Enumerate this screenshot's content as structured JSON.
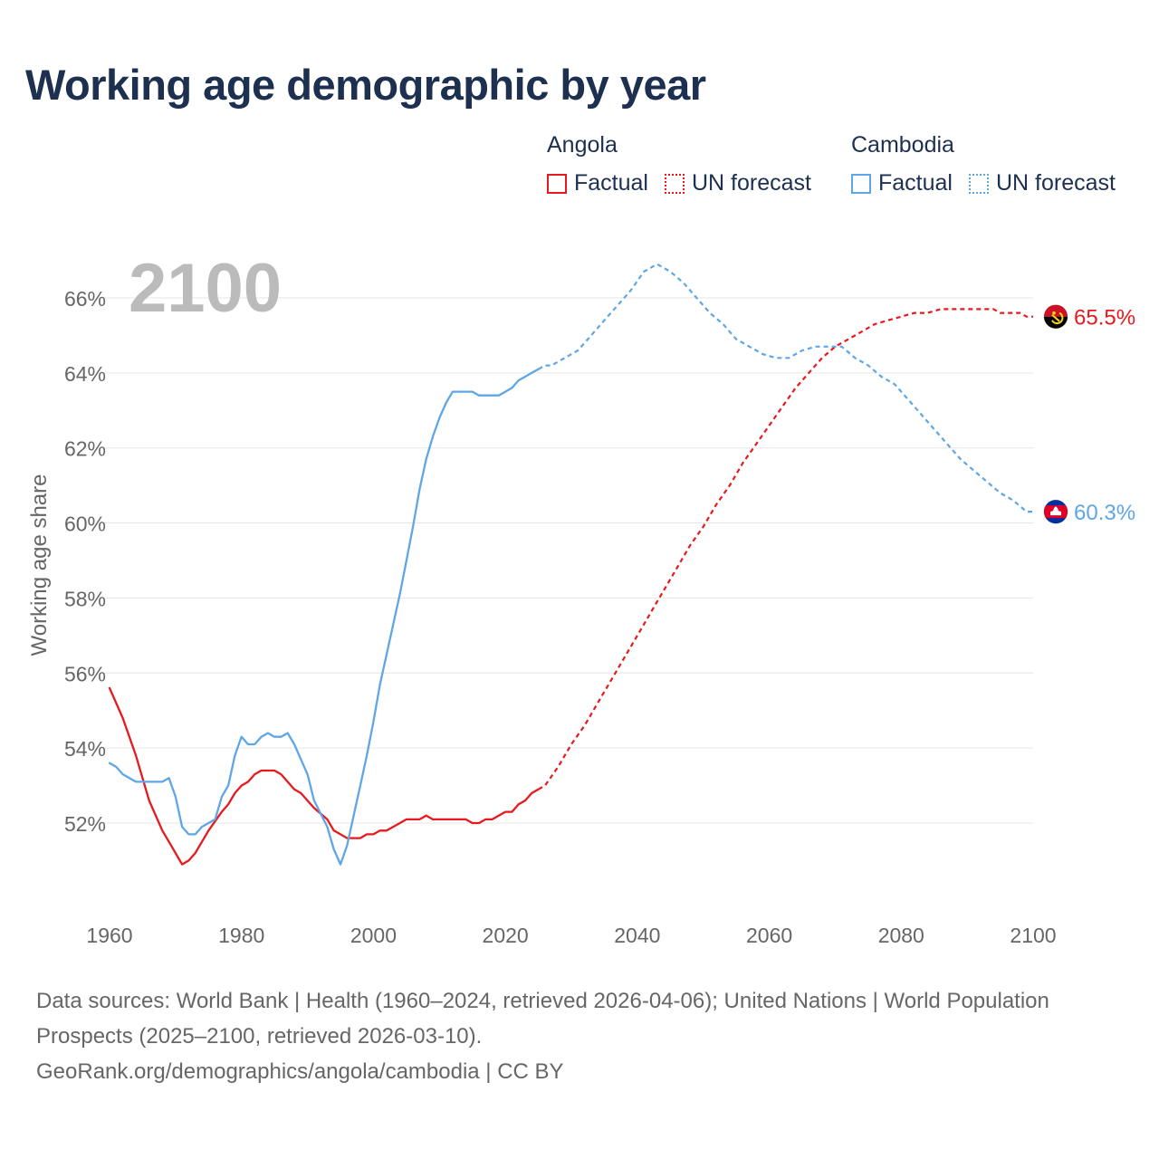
{
  "title": "Working age demographic by year",
  "legend": {
    "groups": [
      {
        "country": "Angola",
        "factual_label": "Factual",
        "forecast_label": "UN forecast",
        "color": "#e8191e"
      },
      {
        "country": "Cambodia",
        "factual_label": "Factual",
        "forecast_label": "UN forecast",
        "color": "#5ea6e6"
      }
    ]
  },
  "footer": {
    "sources": "Data sources: World Bank | Health (1960–2024, retrieved 2026-04-06); United Nations | World Population Prospects (2025–2100, retrieved 2026-03-10).",
    "link": "GeoRank.org/demographics/angola/cambodia | CC BY"
  },
  "chart_data": {
    "type": "line",
    "title": "Working age demographic by year",
    "ylabel": "Working age share",
    "xlabel": "",
    "current_year_label": "2100",
    "xlim": [
      1960,
      2100
    ],
    "ylim": [
      50,
      67.5
    ],
    "grid": true,
    "x_ticks": [
      1960,
      1980,
      2000,
      2020,
      2040,
      2060,
      2080,
      2100
    ],
    "y_ticks": [
      52,
      54,
      56,
      58,
      60,
      62,
      64,
      66
    ],
    "y_tick_labels": [
      "52%",
      "54%",
      "56%",
      "58%",
      "60%",
      "62%",
      "64%",
      "66%"
    ],
    "series": [
      {
        "name": "Angola",
        "color": "#e8191e",
        "end_label": "65.5%",
        "flag_icon": "angola-flag-icon",
        "factual": [
          [
            1960,
            55.6
          ],
          [
            1962,
            54.8
          ],
          [
            1964,
            53.8
          ],
          [
            1966,
            52.6
          ],
          [
            1968,
            51.8
          ],
          [
            1969,
            51.5
          ],
          [
            1971,
            50.9
          ],
          [
            1972,
            51.0
          ],
          [
            1973,
            51.2
          ],
          [
            1975,
            51.8
          ],
          [
            1977,
            52.3
          ],
          [
            1978,
            52.5
          ],
          [
            1979,
            52.8
          ],
          [
            1980,
            53.0
          ],
          [
            1981,
            53.1
          ],
          [
            1982,
            53.3
          ],
          [
            1983,
            53.4
          ],
          [
            1985,
            53.4
          ],
          [
            1986,
            53.3
          ],
          [
            1987,
            53.1
          ],
          [
            1988,
            52.9
          ],
          [
            1989,
            52.8
          ],
          [
            1991,
            52.4
          ],
          [
            1993,
            52.1
          ],
          [
            1994,
            51.8
          ],
          [
            1996,
            51.6
          ],
          [
            1998,
            51.6
          ],
          [
            1999,
            51.7
          ],
          [
            2000,
            51.7
          ],
          [
            2001,
            51.8
          ],
          [
            2002,
            51.8
          ],
          [
            2004,
            52.0
          ],
          [
            2005,
            52.1
          ],
          [
            2007,
            52.1
          ],
          [
            2008,
            52.2
          ],
          [
            2009,
            52.1
          ],
          [
            2014,
            52.1
          ],
          [
            2015,
            52.0
          ],
          [
            2016,
            52.0
          ],
          [
            2017,
            52.1
          ],
          [
            2018,
            52.1
          ],
          [
            2020,
            52.3
          ],
          [
            2021,
            52.3
          ],
          [
            2022,
            52.5
          ],
          [
            2023,
            52.6
          ],
          [
            2024,
            52.8
          ],
          [
            2025,
            52.9
          ]
        ],
        "forecast": [
          [
            2025,
            52.9
          ],
          [
            2026,
            53.0
          ],
          [
            2028,
            53.5
          ],
          [
            2030,
            54.1
          ],
          [
            2032,
            54.6
          ],
          [
            2034,
            55.2
          ],
          [
            2036,
            55.8
          ],
          [
            2038,
            56.4
          ],
          [
            2040,
            57.0
          ],
          [
            2042,
            57.6
          ],
          [
            2044,
            58.2
          ],
          [
            2046,
            58.8
          ],
          [
            2048,
            59.4
          ],
          [
            2050,
            59.9
          ],
          [
            2052,
            60.5
          ],
          [
            2054,
            61.0
          ],
          [
            2056,
            61.6
          ],
          [
            2058,
            62.1
          ],
          [
            2060,
            62.6
          ],
          [
            2062,
            63.1
          ],
          [
            2064,
            63.6
          ],
          [
            2066,
            64.0
          ],
          [
            2068,
            64.4
          ],
          [
            2070,
            64.7
          ],
          [
            2072,
            64.9
          ],
          [
            2074,
            65.1
          ],
          [
            2076,
            65.3
          ],
          [
            2078,
            65.4
          ],
          [
            2080,
            65.5
          ],
          [
            2082,
            65.6
          ],
          [
            2084,
            65.6
          ],
          [
            2086,
            65.7
          ],
          [
            2094,
            65.7
          ],
          [
            2095,
            65.6
          ],
          [
            2098,
            65.6
          ],
          [
            2099,
            65.5
          ],
          [
            2100,
            65.5
          ]
        ]
      },
      {
        "name": "Cambodia",
        "color": "#5ea6e6",
        "end_label": "60.3%",
        "flag_icon": "cambodia-flag-icon",
        "factual": [
          [
            1960,
            53.6
          ],
          [
            1961,
            53.5
          ],
          [
            1962,
            53.3
          ],
          [
            1964,
            53.1
          ],
          [
            1968,
            53.1
          ],
          [
            1969,
            53.2
          ],
          [
            1970,
            52.7
          ],
          [
            1971,
            51.9
          ],
          [
            1972,
            51.7
          ],
          [
            1973,
            51.7
          ],
          [
            1974,
            51.9
          ],
          [
            1976,
            52.1
          ],
          [
            1977,
            52.7
          ],
          [
            1978,
            53.0
          ],
          [
            1979,
            53.8
          ],
          [
            1980,
            54.3
          ],
          [
            1981,
            54.1
          ],
          [
            1982,
            54.1
          ],
          [
            1983,
            54.3
          ],
          [
            1984,
            54.4
          ],
          [
            1985,
            54.3
          ],
          [
            1986,
            54.3
          ],
          [
            1987,
            54.4
          ],
          [
            1988,
            54.1
          ],
          [
            1990,
            53.3
          ],
          [
            1991,
            52.6
          ],
          [
            1993,
            51.9
          ],
          [
            1994,
            51.3
          ],
          [
            1995,
            50.9
          ],
          [
            1996,
            51.4
          ],
          [
            1997,
            52.2
          ],
          [
            1998,
            53.0
          ],
          [
            1999,
            53.8
          ],
          [
            2000,
            54.7
          ],
          [
            2001,
            55.7
          ],
          [
            2002,
            56.5
          ],
          [
            2003,
            57.3
          ],
          [
            2004,
            58.1
          ],
          [
            2005,
            59.0
          ],
          [
            2006,
            59.9
          ],
          [
            2007,
            60.9
          ],
          [
            2008,
            61.7
          ],
          [
            2009,
            62.3
          ],
          [
            2010,
            62.8
          ],
          [
            2011,
            63.2
          ],
          [
            2012,
            63.5
          ],
          [
            2015,
            63.5
          ],
          [
            2016,
            63.4
          ],
          [
            2019,
            63.4
          ],
          [
            2020,
            63.5
          ],
          [
            2021,
            63.6
          ],
          [
            2022,
            63.8
          ],
          [
            2023,
            63.9
          ],
          [
            2024,
            64.0
          ],
          [
            2025,
            64.1
          ]
        ],
        "forecast": [
          [
            2025,
            64.1
          ],
          [
            2026,
            64.2
          ],
          [
            2027,
            64.2
          ],
          [
            2029,
            64.4
          ],
          [
            2031,
            64.6
          ],
          [
            2033,
            65.0
          ],
          [
            2035,
            65.4
          ],
          [
            2037,
            65.8
          ],
          [
            2039,
            66.2
          ],
          [
            2041,
            66.7
          ],
          [
            2043,
            66.9
          ],
          [
            2045,
            66.7
          ],
          [
            2047,
            66.4
          ],
          [
            2049,
            66.0
          ],
          [
            2051,
            65.6
          ],
          [
            2053,
            65.3
          ],
          [
            2055,
            64.9
          ],
          [
            2057,
            64.7
          ],
          [
            2059,
            64.5
          ],
          [
            2061,
            64.4
          ],
          [
            2063,
            64.4
          ],
          [
            2065,
            64.6
          ],
          [
            2067,
            64.7
          ],
          [
            2071,
            64.7
          ],
          [
            2073,
            64.4
          ],
          [
            2075,
            64.2
          ],
          [
            2077,
            63.9
          ],
          [
            2079,
            63.7
          ],
          [
            2081,
            63.3
          ],
          [
            2083,
            62.9
          ],
          [
            2085,
            62.5
          ],
          [
            2087,
            62.1
          ],
          [
            2089,
            61.7
          ],
          [
            2091,
            61.4
          ],
          [
            2093,
            61.1
          ],
          [
            2095,
            60.8
          ],
          [
            2097,
            60.6
          ],
          [
            2099,
            60.3
          ],
          [
            2100,
            60.3
          ]
        ]
      }
    ]
  }
}
